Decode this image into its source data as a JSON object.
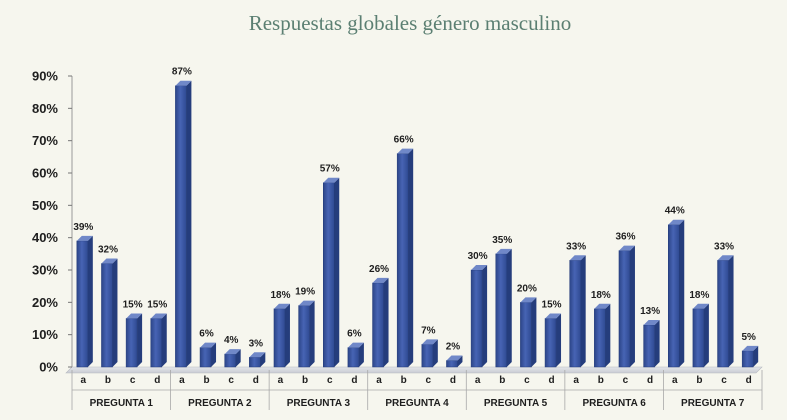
{
  "chart_data": {
    "type": "bar",
    "title": "Respuestas globales género masculino",
    "xlabel": "",
    "ylabel": "",
    "ylim": [
      0,
      90
    ],
    "y_ticks": [
      "0%",
      "10%",
      "20%",
      "30%",
      "40%",
      "50%",
      "60%",
      "70%",
      "80%",
      "90%"
    ],
    "y_tick_values": [
      0,
      10,
      20,
      30,
      40,
      50,
      60,
      70,
      80,
      90
    ],
    "categories": [
      "a",
      "b",
      "c",
      "d"
    ],
    "grid": false,
    "bar_color": "#3a559f",
    "groups": [
      {
        "name": "PREGUNTA 1",
        "values": [
          39,
          32,
          15,
          15
        ],
        "labels": [
          "39%",
          "32%",
          "15%",
          "15%"
        ]
      },
      {
        "name": "PREGUNTA 2",
        "values": [
          87,
          6,
          4,
          3
        ],
        "labels": [
          "87%",
          "6%",
          "4%",
          "3%"
        ]
      },
      {
        "name": "PREGUNTA 3",
        "values": [
          18,
          19,
          57,
          6
        ],
        "labels": [
          "18%",
          "19%",
          "57%",
          "6%"
        ]
      },
      {
        "name": "PREGUNTA 4",
        "values": [
          26,
          66,
          7,
          2
        ],
        "labels": [
          "26%",
          "66%",
          "7%",
          "2%"
        ]
      },
      {
        "name": "PREGUNTA 5",
        "values": [
          30,
          35,
          20,
          15
        ],
        "labels": [
          "30%",
          "35%",
          "20%",
          "15%"
        ]
      },
      {
        "name": "PREGUNTA 6",
        "values": [
          33,
          18,
          36,
          13
        ],
        "labels": [
          "33%",
          "18%",
          "36%",
          "13%"
        ]
      },
      {
        "name": "PREGUNTA 7",
        "values": [
          44,
          18,
          33,
          5
        ],
        "labels": [
          "44%",
          "18%",
          "33%",
          "5%"
        ]
      }
    ]
  }
}
